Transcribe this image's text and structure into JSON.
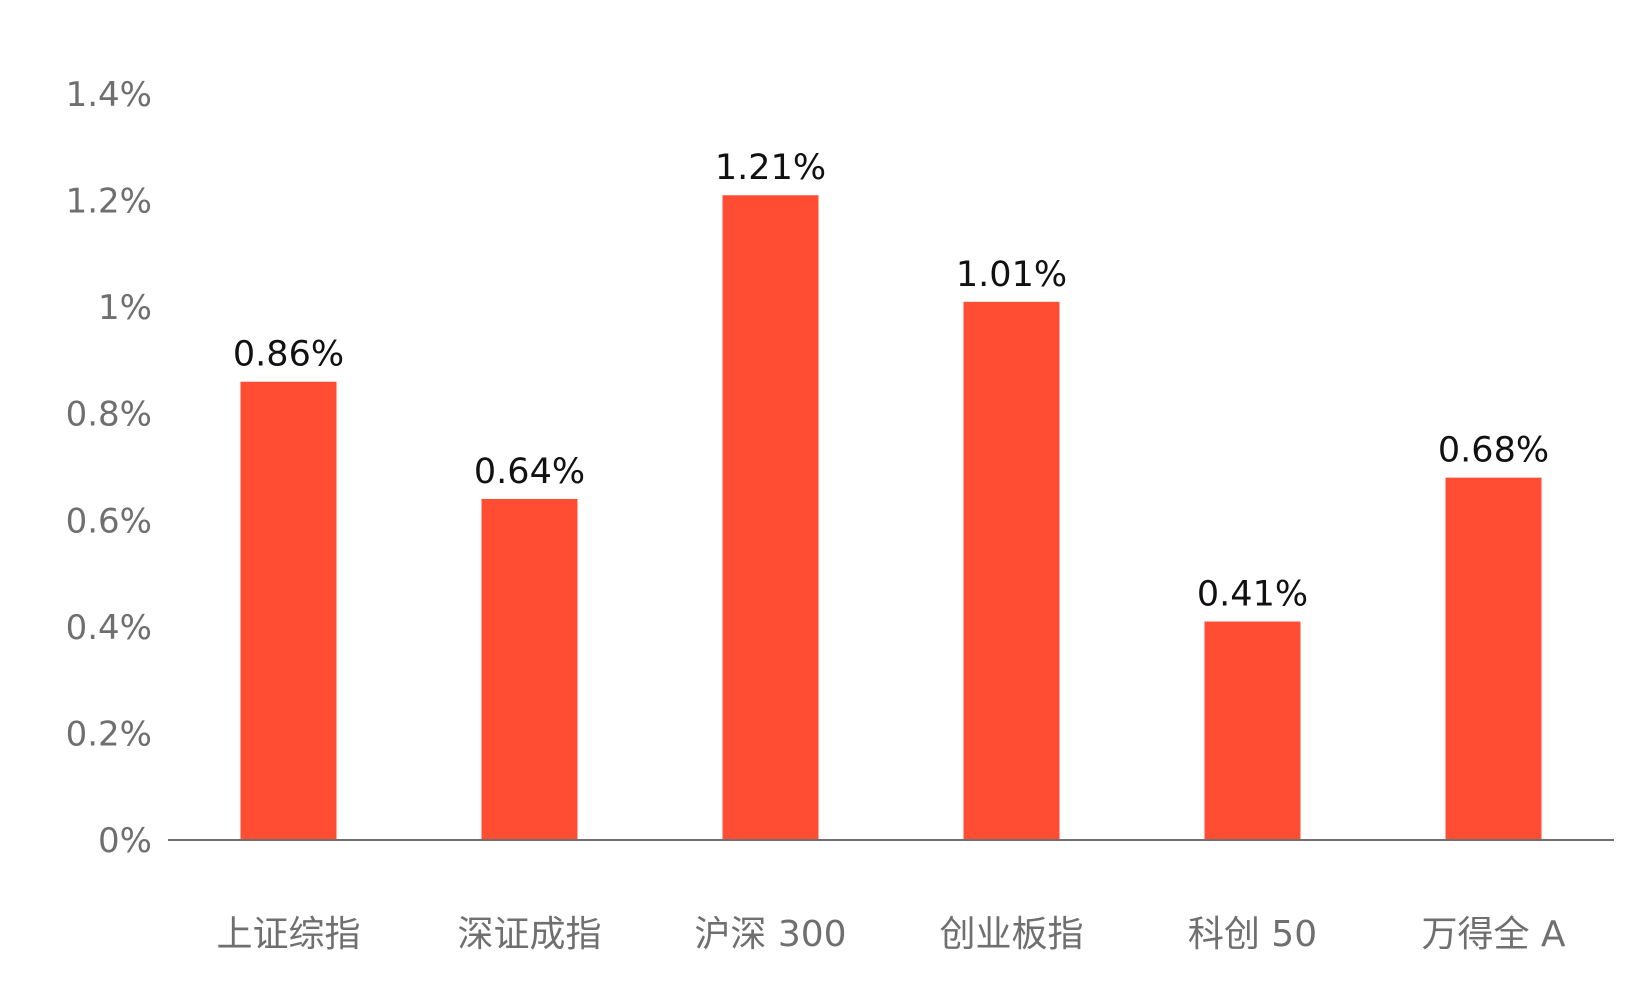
{
  "chart_data": {
    "type": "bar",
    "categories": [
      "上证综指",
      "深证成指",
      "沪深 300",
      "创业板指",
      "科创 50",
      "万得全 A"
    ],
    "values": [
      0.86,
      0.64,
      1.21,
      1.01,
      0.41,
      0.68
    ],
    "data_labels": [
      "0.86%",
      "0.64%",
      "1.21%",
      "1.01%",
      "0.41%",
      "0.68%"
    ],
    "y_ticks": [
      0,
      0.2,
      0.4,
      0.6,
      0.8,
      1.0,
      1.2,
      1.4
    ],
    "y_tick_labels": [
      "0%",
      "0.2%",
      "0.4%",
      "0.6%",
      "0.8%",
      "1%",
      "1.2%",
      "1.4%"
    ],
    "ylim": [
      0,
      1.4
    ],
    "grid": false,
    "legend": "none",
    "bar_color": "#ff4d33",
    "axis_color": "#6f6f6f"
  }
}
